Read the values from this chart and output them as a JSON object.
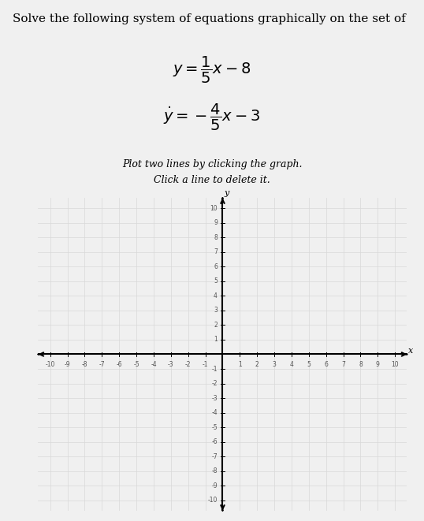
{
  "title_text": "Solve the following system of equations graphically on the set of",
  "instruction_line1": "Plot two lines by clicking the graph.",
  "instruction_line2": "Click a line to delete it.",
  "x_label": "x",
  "y_label": "y",
  "xlim": [
    -10,
    10
  ],
  "ylim": [
    -10,
    10
  ],
  "bg_color": "#e8e8e8",
  "page_bg": "#f0f0f0",
  "grid_color": "#d8d8d8",
  "axis_color": "#000000",
  "tick_fontsize": 5.5,
  "title_fontsize": 11,
  "eq_fontsize": 14,
  "instr_fontsize": 9
}
